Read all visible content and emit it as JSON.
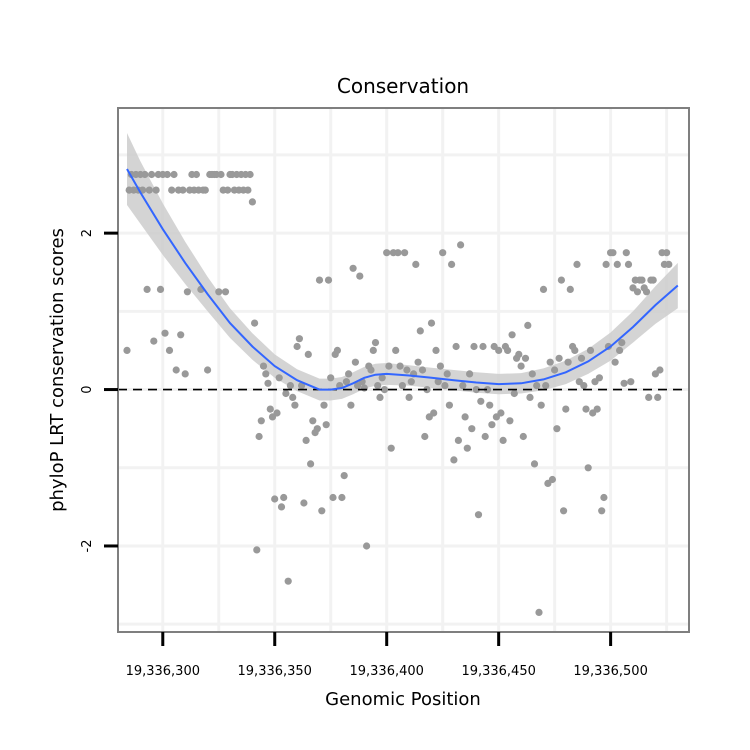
{
  "chart_data": {
    "type": "scatter",
    "title": "Conservation",
    "xlabel": "Genomic Position",
    "ylabel": "phyloP LRT conservation scores",
    "xlim": [
      19336280,
      19336535
    ],
    "ylim": [
      -3.1,
      3.6
    ],
    "x_ticks": [
      19336300,
      19336350,
      19336400,
      19336450,
      19336500
    ],
    "x_tick_labels": [
      "19,336,300",
      "19,336,350",
      "19,336,400",
      "19,336,450",
      "19,336,500"
    ],
    "y_ticks": [
      -2,
      0,
      2
    ],
    "y_tick_labels": [
      "-2",
      "0",
      "2"
    ],
    "reference_line": {
      "y": 0,
      "style": "dashed"
    },
    "colors": {
      "points": "#999999",
      "smooth": "#3366ff",
      "band": "#cccccc",
      "frame": "#7f7f7f",
      "grid": "#f2f2f2"
    },
    "series": [
      {
        "name": "points",
        "kind": "scatter",
        "points": [
          [
            19336284,
            0.5
          ],
          [
            19336285,
            2.55
          ],
          [
            19336286,
            2.75
          ],
          [
            19336287,
            2.55
          ],
          [
            19336288,
            2.75
          ],
          [
            19336289,
            2.55
          ],
          [
            19336290,
            2.75
          ],
          [
            19336291,
            2.55
          ],
          [
            19336292,
            2.75
          ],
          [
            19336293,
            1.28
          ],
          [
            19336294,
            2.55
          ],
          [
            19336295,
            2.75
          ],
          [
            19336296,
            0.62
          ],
          [
            19336297,
            2.55
          ],
          [
            19336298,
            2.75
          ],
          [
            19336299,
            1.28
          ],
          [
            19336300,
            2.75
          ],
          [
            19336301,
            0.72
          ],
          [
            19336302,
            2.75
          ],
          [
            19336303,
            0.5
          ],
          [
            19336304,
            2.55
          ],
          [
            19336305,
            2.75
          ],
          [
            19336306,
            0.25
          ],
          [
            19336307,
            2.55
          ],
          [
            19336308,
            0.7
          ],
          [
            19336309,
            2.55
          ],
          [
            19336310,
            0.2
          ],
          [
            19336311,
            1.25
          ],
          [
            19336312,
            2.55
          ],
          [
            19336313,
            2.75
          ],
          [
            19336314,
            2.55
          ],
          [
            19336315,
            2.75
          ],
          [
            19336316,
            2.55
          ],
          [
            19336317,
            1.28
          ],
          [
            19336318,
            2.55
          ],
          [
            19336319,
            2.55
          ],
          [
            19336320,
            0.25
          ],
          [
            19336321,
            2.75
          ],
          [
            19336322,
            2.75
          ],
          [
            19336323,
            2.75
          ],
          [
            19336324,
            2.75
          ],
          [
            19336325,
            1.25
          ],
          [
            19336326,
            2.75
          ],
          [
            19336327,
            2.55
          ],
          [
            19336328,
            1.25
          ],
          [
            19336329,
            2.55
          ],
          [
            19336330,
            2.75
          ],
          [
            19336331,
            2.75
          ],
          [
            19336332,
            2.55
          ],
          [
            19336333,
            2.75
          ],
          [
            19336334,
            2.55
          ],
          [
            19336335,
            2.75
          ],
          [
            19336336,
            2.55
          ],
          [
            19336337,
            2.75
          ],
          [
            19336338,
            2.55
          ],
          [
            19336339,
            2.75
          ],
          [
            19336340,
            2.4
          ],
          [
            19336341,
            0.85
          ],
          [
            19336342,
            -2.05
          ],
          [
            19336343,
            -0.6
          ],
          [
            19336344,
            -0.4
          ],
          [
            19336345,
            0.3
          ],
          [
            19336346,
            0.2
          ],
          [
            19336347,
            0.08
          ],
          [
            19336348,
            -0.25
          ],
          [
            19336349,
            -0.35
          ],
          [
            19336350,
            -1.4
          ],
          [
            19336351,
            -0.3
          ],
          [
            19336352,
            0.15
          ],
          [
            19336353,
            -1.5
          ],
          [
            19336354,
            -1.38
          ],
          [
            19336355,
            -0.05
          ],
          [
            19336356,
            -2.45
          ],
          [
            19336357,
            0.05
          ],
          [
            19336358,
            -0.1
          ],
          [
            19336359,
            -0.2
          ],
          [
            19336360,
            0.55
          ],
          [
            19336361,
            0.65
          ],
          [
            19336362,
            0.05
          ],
          [
            19336363,
            -1.45
          ],
          [
            19336364,
            -0.65
          ],
          [
            19336365,
            0.45
          ],
          [
            19336366,
            -0.95
          ],
          [
            19336367,
            -0.4
          ],
          [
            19336368,
            -0.55
          ],
          [
            19336369,
            -0.5
          ],
          [
            19336370,
            1.4
          ],
          [
            19336371,
            -1.55
          ],
          [
            19336372,
            -0.2
          ],
          [
            19336373,
            -0.45
          ],
          [
            19336374,
            1.4
          ],
          [
            19336375,
            0.15
          ],
          [
            19336376,
            -1.38
          ],
          [
            19336377,
            0.45
          ],
          [
            19336378,
            0.5
          ],
          [
            19336379,
            0.05
          ],
          [
            19336380,
            -1.38
          ],
          [
            19336381,
            -1.1
          ],
          [
            19336382,
            0.1
          ],
          [
            19336383,
            0.2
          ],
          [
            19336384,
            -0.2
          ],
          [
            19336385,
            1.55
          ],
          [
            19336386,
            0.35
          ],
          [
            19336387,
            0.05
          ],
          [
            19336388,
            1.45
          ],
          [
            19336389,
            0.1
          ],
          [
            19336390,
            0.02
          ],
          [
            19336391,
            -2.0
          ],
          [
            19336392,
            0.3
          ],
          [
            19336393,
            0.25
          ],
          [
            19336394,
            0.5
          ],
          [
            19336395,
            0.6
          ],
          [
            19336396,
            0.05
          ],
          [
            19336397,
            -0.1
          ],
          [
            19336398,
            0.15
          ],
          [
            19336399,
            0.0
          ],
          [
            19336400,
            1.75
          ],
          [
            19336401,
            0.3
          ],
          [
            19336402,
            -0.75
          ],
          [
            19336403,
            1.75
          ],
          [
            19336404,
            0.5
          ],
          [
            19336405,
            1.75
          ],
          [
            19336406,
            0.3
          ],
          [
            19336407,
            0.05
          ],
          [
            19336408,
            1.75
          ],
          [
            19336409,
            0.25
          ],
          [
            19336410,
            -0.1
          ],
          [
            19336411,
            0.1
          ],
          [
            19336412,
            0.2
          ],
          [
            19336413,
            1.6
          ],
          [
            19336414,
            0.35
          ],
          [
            19336415,
            0.75
          ],
          [
            19336416,
            0.25
          ],
          [
            19336417,
            -0.6
          ],
          [
            19336418,
            0.0
          ],
          [
            19336419,
            -0.35
          ],
          [
            19336420,
            0.85
          ],
          [
            19336421,
            -0.3
          ],
          [
            19336422,
            0.5
          ],
          [
            19336423,
            0.1
          ],
          [
            19336424,
            0.3
          ],
          [
            19336425,
            1.75
          ],
          [
            19336426,
            0.05
          ],
          [
            19336427,
            0.2
          ],
          [
            19336428,
            -0.2
          ],
          [
            19336429,
            1.6
          ],
          [
            19336430,
            -0.9
          ],
          [
            19336431,
            0.55
          ],
          [
            19336432,
            -0.65
          ],
          [
            19336433,
            1.85
          ],
          [
            19336434,
            0.05
          ],
          [
            19336435,
            -0.35
          ],
          [
            19336436,
            -0.75
          ],
          [
            19336437,
            0.2
          ],
          [
            19336438,
            -0.5
          ],
          [
            19336439,
            0.55
          ],
          [
            19336440,
            0.0
          ],
          [
            19336441,
            -1.6
          ],
          [
            19336442,
            -0.15
          ],
          [
            19336443,
            0.55
          ],
          [
            19336444,
            -0.6
          ],
          [
            19336445,
            0.0
          ],
          [
            19336446,
            -0.2
          ],
          [
            19336447,
            -0.45
          ],
          [
            19336448,
            0.55
          ],
          [
            19336449,
            -0.35
          ],
          [
            19336450,
            0.5
          ],
          [
            19336451,
            -0.3
          ],
          [
            19336452,
            -0.65
          ],
          [
            19336453,
            0.55
          ],
          [
            19336454,
            0.5
          ],
          [
            19336455,
            -0.4
          ],
          [
            19336456,
            0.7
          ],
          [
            19336457,
            -0.05
          ],
          [
            19336458,
            0.4
          ],
          [
            19336459,
            0.45
          ],
          [
            19336460,
            0.3
          ],
          [
            19336461,
            -0.6
          ],
          [
            19336462,
            0.4
          ],
          [
            19336463,
            0.82
          ],
          [
            19336464,
            -0.1
          ],
          [
            19336465,
            0.2
          ],
          [
            19336466,
            -0.95
          ],
          [
            19336467,
            0.05
          ],
          [
            19336468,
            -2.85
          ],
          [
            19336469,
            -0.2
          ],
          [
            19336470,
            1.28
          ],
          [
            19336471,
            0.05
          ],
          [
            19336472,
            -1.2
          ],
          [
            19336473,
            0.35
          ],
          [
            19336474,
            -1.15
          ],
          [
            19336475,
            0.25
          ],
          [
            19336476,
            -0.5
          ],
          [
            19336477,
            0.4
          ],
          [
            19336478,
            1.4
          ],
          [
            19336479,
            -1.55
          ],
          [
            19336480,
            -0.25
          ],
          [
            19336481,
            0.35
          ],
          [
            19336482,
            1.28
          ],
          [
            19336483,
            0.55
          ],
          [
            19336484,
            0.5
          ],
          [
            19336485,
            1.6
          ],
          [
            19336486,
            0.1
          ],
          [
            19336487,
            0.4
          ],
          [
            19336488,
            0.05
          ],
          [
            19336489,
            -0.25
          ],
          [
            19336490,
            -1.0
          ],
          [
            19336491,
            0.5
          ],
          [
            19336492,
            -0.3
          ],
          [
            19336493,
            0.1
          ],
          [
            19336494,
            -0.25
          ],
          [
            19336495,
            0.15
          ],
          [
            19336496,
            -1.55
          ],
          [
            19336497,
            -1.38
          ],
          [
            19336498,
            1.6
          ],
          [
            19336499,
            0.55
          ],
          [
            19336500,
            1.75
          ],
          [
            19336501,
            1.75
          ],
          [
            19336502,
            0.35
          ],
          [
            19336503,
            1.6
          ],
          [
            19336504,
            0.5
          ],
          [
            19336505,
            0.6
          ],
          [
            19336506,
            0.08
          ],
          [
            19336507,
            1.75
          ],
          [
            19336508,
            1.6
          ],
          [
            19336509,
            0.1
          ],
          [
            19336510,
            1.3
          ],
          [
            19336511,
            1.4
          ],
          [
            19336512,
            1.25
          ],
          [
            19336513,
            1.4
          ],
          [
            19336514,
            1.4
          ],
          [
            19336515,
            1.3
          ],
          [
            19336516,
            1.25
          ],
          [
            19336517,
            -0.1
          ],
          [
            19336518,
            1.4
          ],
          [
            19336519,
            1.4
          ],
          [
            19336520,
            0.2
          ],
          [
            19336521,
            -0.1
          ],
          [
            19336522,
            0.25
          ],
          [
            19336523,
            1.75
          ],
          [
            19336524,
            1.6
          ],
          [
            19336525,
            1.75
          ],
          [
            19336526,
            1.6
          ]
        ]
      },
      {
        "name": "smooth",
        "kind": "line",
        "points": [
          [
            19336284,
            2.82
          ],
          [
            19336290,
            2.52
          ],
          [
            19336300,
            2.05
          ],
          [
            19336310,
            1.62
          ],
          [
            19336320,
            1.22
          ],
          [
            19336330,
            0.85
          ],
          [
            19336340,
            0.55
          ],
          [
            19336350,
            0.3
          ],
          [
            19336360,
            0.12
          ],
          [
            19336370,
            0.0
          ],
          [
            19336375,
            0.0
          ],
          [
            19336380,
            0.02
          ],
          [
            19336385,
            0.08
          ],
          [
            19336390,
            0.15
          ],
          [
            19336395,
            0.19
          ],
          [
            19336400,
            0.2
          ],
          [
            19336410,
            0.18
          ],
          [
            19336420,
            0.15
          ],
          [
            19336430,
            0.12
          ],
          [
            19336440,
            0.09
          ],
          [
            19336450,
            0.07
          ],
          [
            19336460,
            0.08
          ],
          [
            19336470,
            0.13
          ],
          [
            19336480,
            0.22
          ],
          [
            19336490,
            0.36
          ],
          [
            19336500,
            0.55
          ],
          [
            19336510,
            0.8
          ],
          [
            19336520,
            1.08
          ],
          [
            19336530,
            1.33
          ]
        ],
        "band_halfwidth": [
          0.46,
          0.4,
          0.33,
          0.27,
          0.22,
          0.19,
          0.17,
          0.15,
          0.14,
          0.14,
          0.14,
          0.14,
          0.14,
          0.14,
          0.14,
          0.14,
          0.13,
          0.13,
          0.13,
          0.13,
          0.13,
          0.13,
          0.14,
          0.15,
          0.16,
          0.18,
          0.2,
          0.24,
          0.29
        ]
      }
    ]
  }
}
